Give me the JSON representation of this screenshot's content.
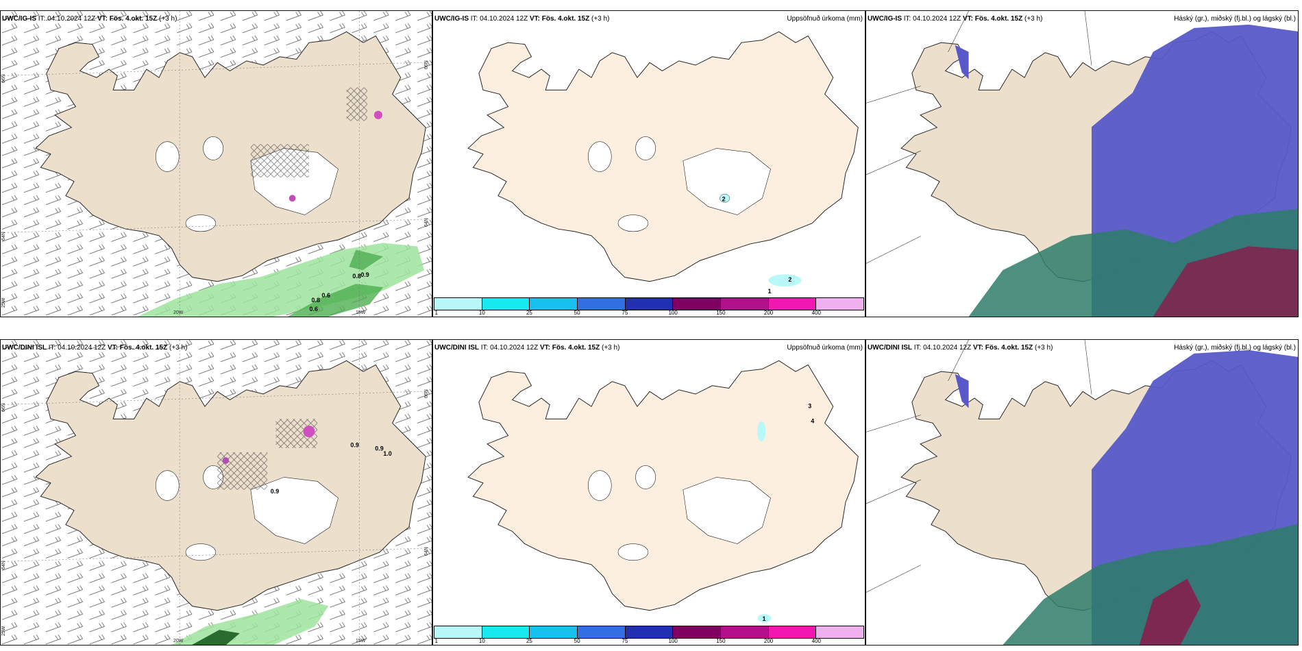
{
  "rows": [
    {
      "model": "UWC/IG-IS",
      "it_label": "IT: 04.10.2024 12Z",
      "vt_label": "VT: Fös. 4.okt. 15Z",
      "lead": "(+3 h)"
    },
    {
      "model": "UWC/DINI ISL",
      "it_label": "IT: 04.10.2024 12Z",
      "vt_label": "VT: Fös. 4.okt. 15Z",
      "lead": "(+3 h)"
    }
  ],
  "precip_title": "Uppsöfnuð úrkoma (mm)",
  "cloud_title": "Háský (gr.), miðský (fj.bl.) og lágský (bl.)",
  "colorbar": {
    "colors": [
      "#b8f8f8",
      "#18e8f0",
      "#18c0f0",
      "#3070e0",
      "#2030b0",
      "#800060",
      "#b0108a",
      "#f018b0",
      "#f0b0f0"
    ],
    "ticks": [
      "1",
      "10",
      "25",
      "50",
      "75",
      "100",
      "150",
      "200",
      "400"
    ]
  },
  "axis_labels": {
    "lat_66": "66N",
    "lat_64": "64N",
    "lat_65": "65N",
    "lon_20": "20W",
    "lon_15": "15W",
    "lon_25": "25W"
  },
  "contour_labels": {
    "top_precip": [
      "2",
      "2",
      "1"
    ],
    "bottom_precip": [
      "3",
      "4",
      "1"
    ],
    "top_wind": [
      "0.8",
      "0.9",
      "0.8",
      "0.6",
      "0.6"
    ],
    "bottom_wind": [
      "0.9",
      "1.0",
      "0.9",
      "0.9"
    ]
  },
  "colors": {
    "land": "#ecdfcc",
    "land_precip": "#fcefe0",
    "high_cloud": "#5858c8",
    "low_cloud": "#2e7d6a",
    "mid_cloud": "#8a1a4a",
    "precip_green": "#9ee39e"
  }
}
